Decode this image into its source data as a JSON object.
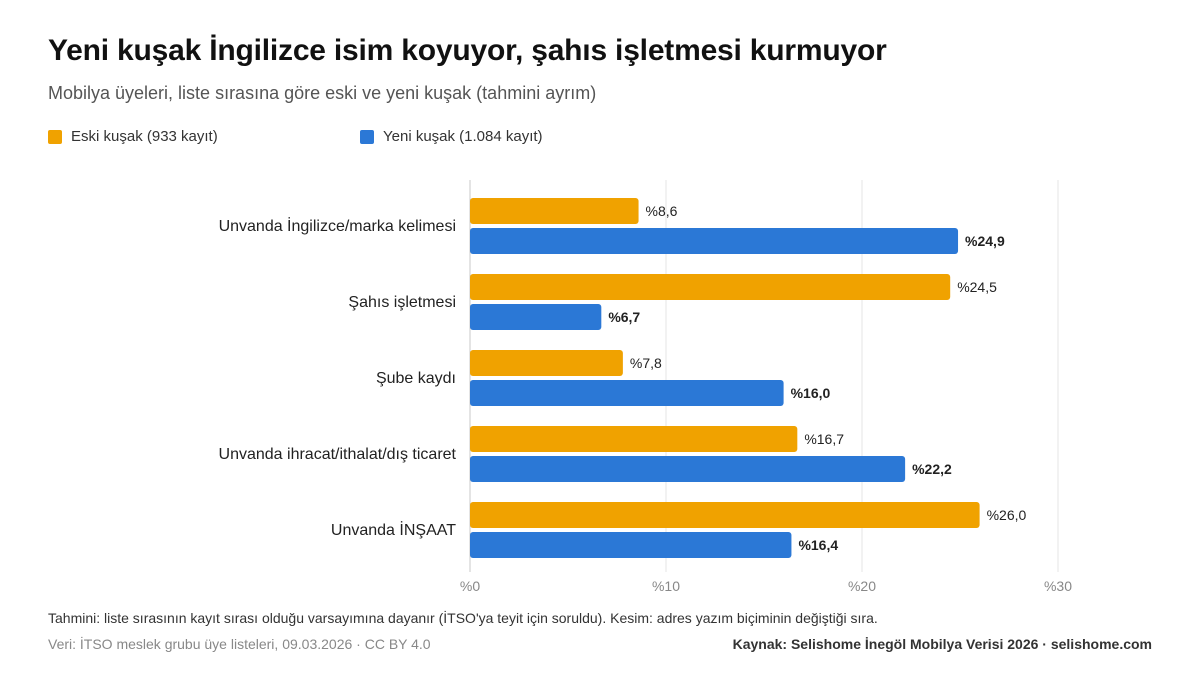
{
  "header": {
    "title": "Yeni kuşak İngilizce isim koyuyor, şahıs işletmesi kurmuyor",
    "subtitle": "Mobilya üyeleri, liste sırasına göre eski ve yeni kuşak (tahmini ayrım)"
  },
  "chart_data": {
    "type": "bar",
    "orientation": "horizontal",
    "categories": [
      "Unvanda İngilizce/marka kelimesi",
      "Şahıs işletmesi",
      "Şube kaydı",
      "Unvanda ihracat/ithalat/dış ticaret",
      "Unvanda İNŞAAT"
    ],
    "series": [
      {
        "name": "Eski kuşak (933 kayıt)",
        "color": "#F0A200",
        "values": [
          8.6,
          24.5,
          7.8,
          16.7,
          26.0
        ],
        "labels": [
          "%8,6",
          "%24,5",
          "%7,8",
          "%16,7",
          "%26,0"
        ],
        "label_bold": false
      },
      {
        "name": "Yeni kuşak (1.084 kayıt)",
        "color": "#2B78D6",
        "values": [
          24.9,
          6.7,
          16.0,
          22.2,
          16.4
        ],
        "labels": [
          "%24,9",
          "%6,7",
          "%16,0",
          "%22,2",
          "%16,4"
        ],
        "label_bold": true
      }
    ],
    "xlim": [
      0,
      30
    ],
    "xticks": [
      0,
      10,
      20,
      30
    ],
    "xtick_labels": [
      "%0",
      "%10",
      "%20",
      "%30"
    ],
    "grid": true,
    "legend_position": "top-left"
  },
  "footer": {
    "note": "Tahmini: liste sırasının kayıt sırası olduğu varsayımına dayanır (İTSO'ya teyit için soruldu). Kesim: adres yazım biçiminin değiştiği sıra.",
    "data_source": "Veri: İTSO meslek grubu üye listeleri, 09.03.2026 · CC BY 4.0",
    "source": "Kaynak: Selishome İnegöl Mobilya Verisi 2026 · selishome.com"
  }
}
